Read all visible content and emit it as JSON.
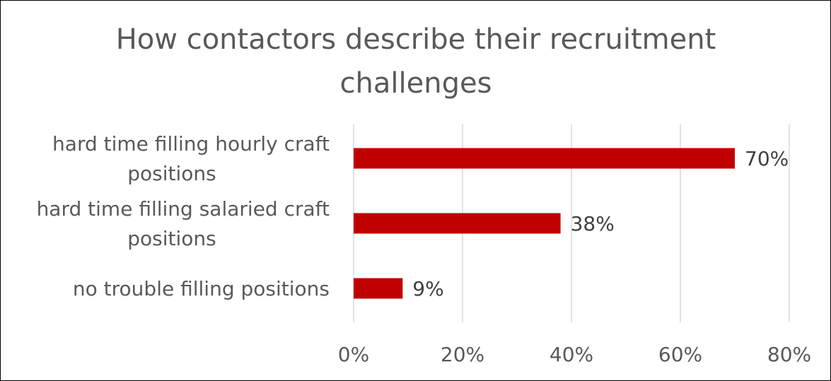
{
  "chart_data": {
    "type": "bar",
    "orientation": "horizontal",
    "title": "How contactors describe their recruitment challenges",
    "title_lines": [
      "How contactors describe their recruitment",
      "challenges"
    ],
    "categories": [
      "hard time filling hourly craft positions",
      "hard time filling salaried craft positions",
      "no trouble filling positions"
    ],
    "category_lines": [
      [
        "hard time filling hourly craft",
        "positions"
      ],
      [
        "hard time filling salaried craft",
        "positions"
      ],
      [
        "no trouble filling positions"
      ]
    ],
    "values": [
      70,
      38,
      9
    ],
    "data_labels": [
      "70%",
      "38%",
      "9%"
    ],
    "xlim": [
      0,
      80
    ],
    "x_ticks": [
      "0%",
      "20%",
      "40%",
      "60%",
      "80%"
    ],
    "bar_color": "#c00000",
    "grid": true,
    "legend": "none"
  }
}
